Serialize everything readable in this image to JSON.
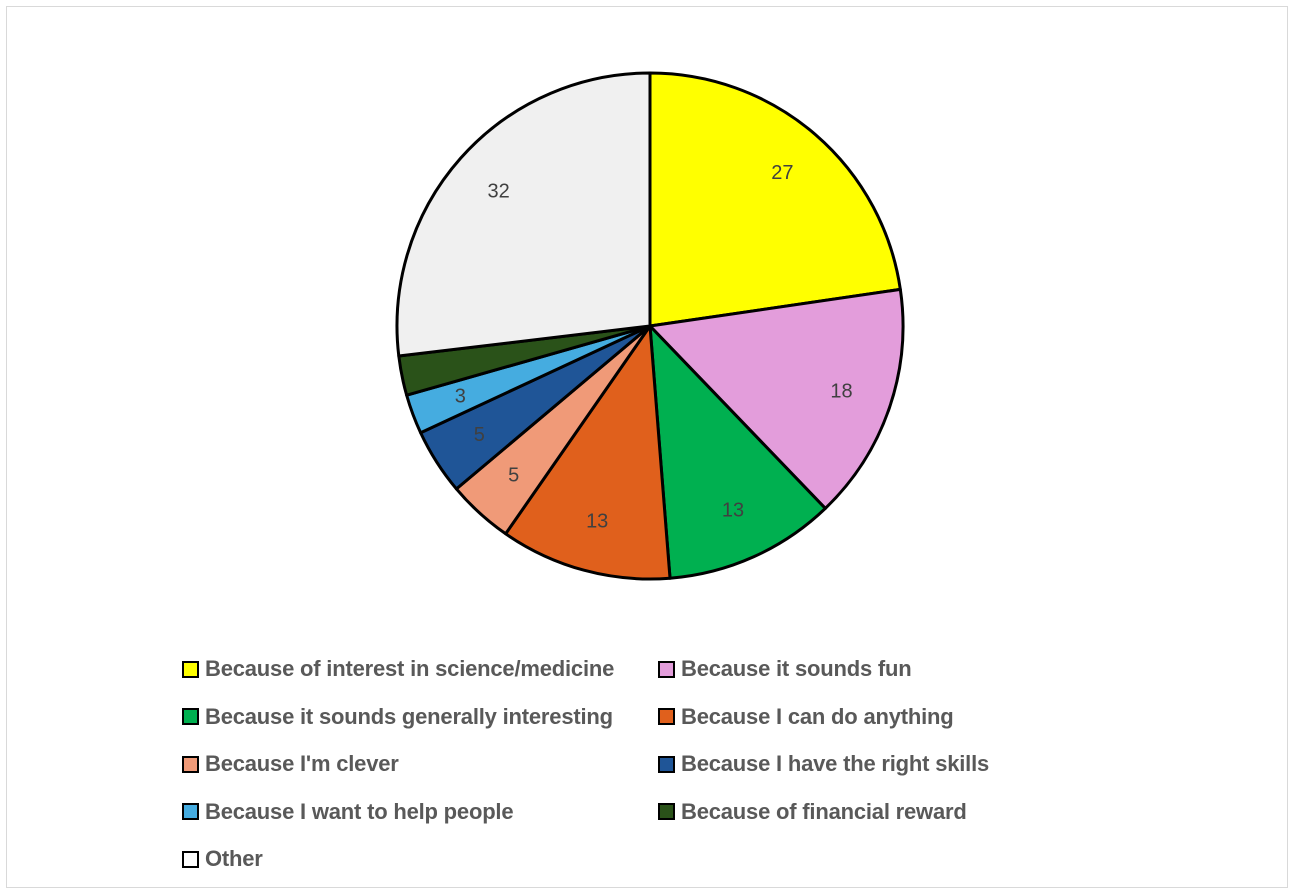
{
  "chart_data": {
    "type": "pie",
    "title": "",
    "start_angle_deg": 0,
    "direction": "clockwise",
    "legend_position": "bottom",
    "slices": [
      {
        "label": "Because of interest in science/medicine",
        "value": 27,
        "color": "#FFFF00",
        "data_label": "27"
      },
      {
        "label": "Because it sounds fun",
        "value": 18,
        "color": "#E39DDB",
        "data_label": "18"
      },
      {
        "label": "Because it sounds generally interesting",
        "value": 13,
        "color": "#00B050",
        "data_label": "13"
      },
      {
        "label": "Because I can do anything",
        "value": 13,
        "color": "#E0601C",
        "data_label": "13"
      },
      {
        "label": "Because I'm clever",
        "value": 5,
        "color": "#F09A78",
        "data_label": "5"
      },
      {
        "label": "Because I have the right skills",
        "value": 5,
        "color": "#1F5597",
        "data_label": "5"
      },
      {
        "label": "Because I want to help people",
        "value": 3,
        "color": "#45ACE0",
        "data_label": "3"
      },
      {
        "label": "Because of financial reward",
        "value": 3,
        "color": "#2A5219",
        "data_label": ""
      },
      {
        "label": "Other",
        "value": 32,
        "color": "#F0F0F0",
        "data_label": "32"
      }
    ]
  }
}
